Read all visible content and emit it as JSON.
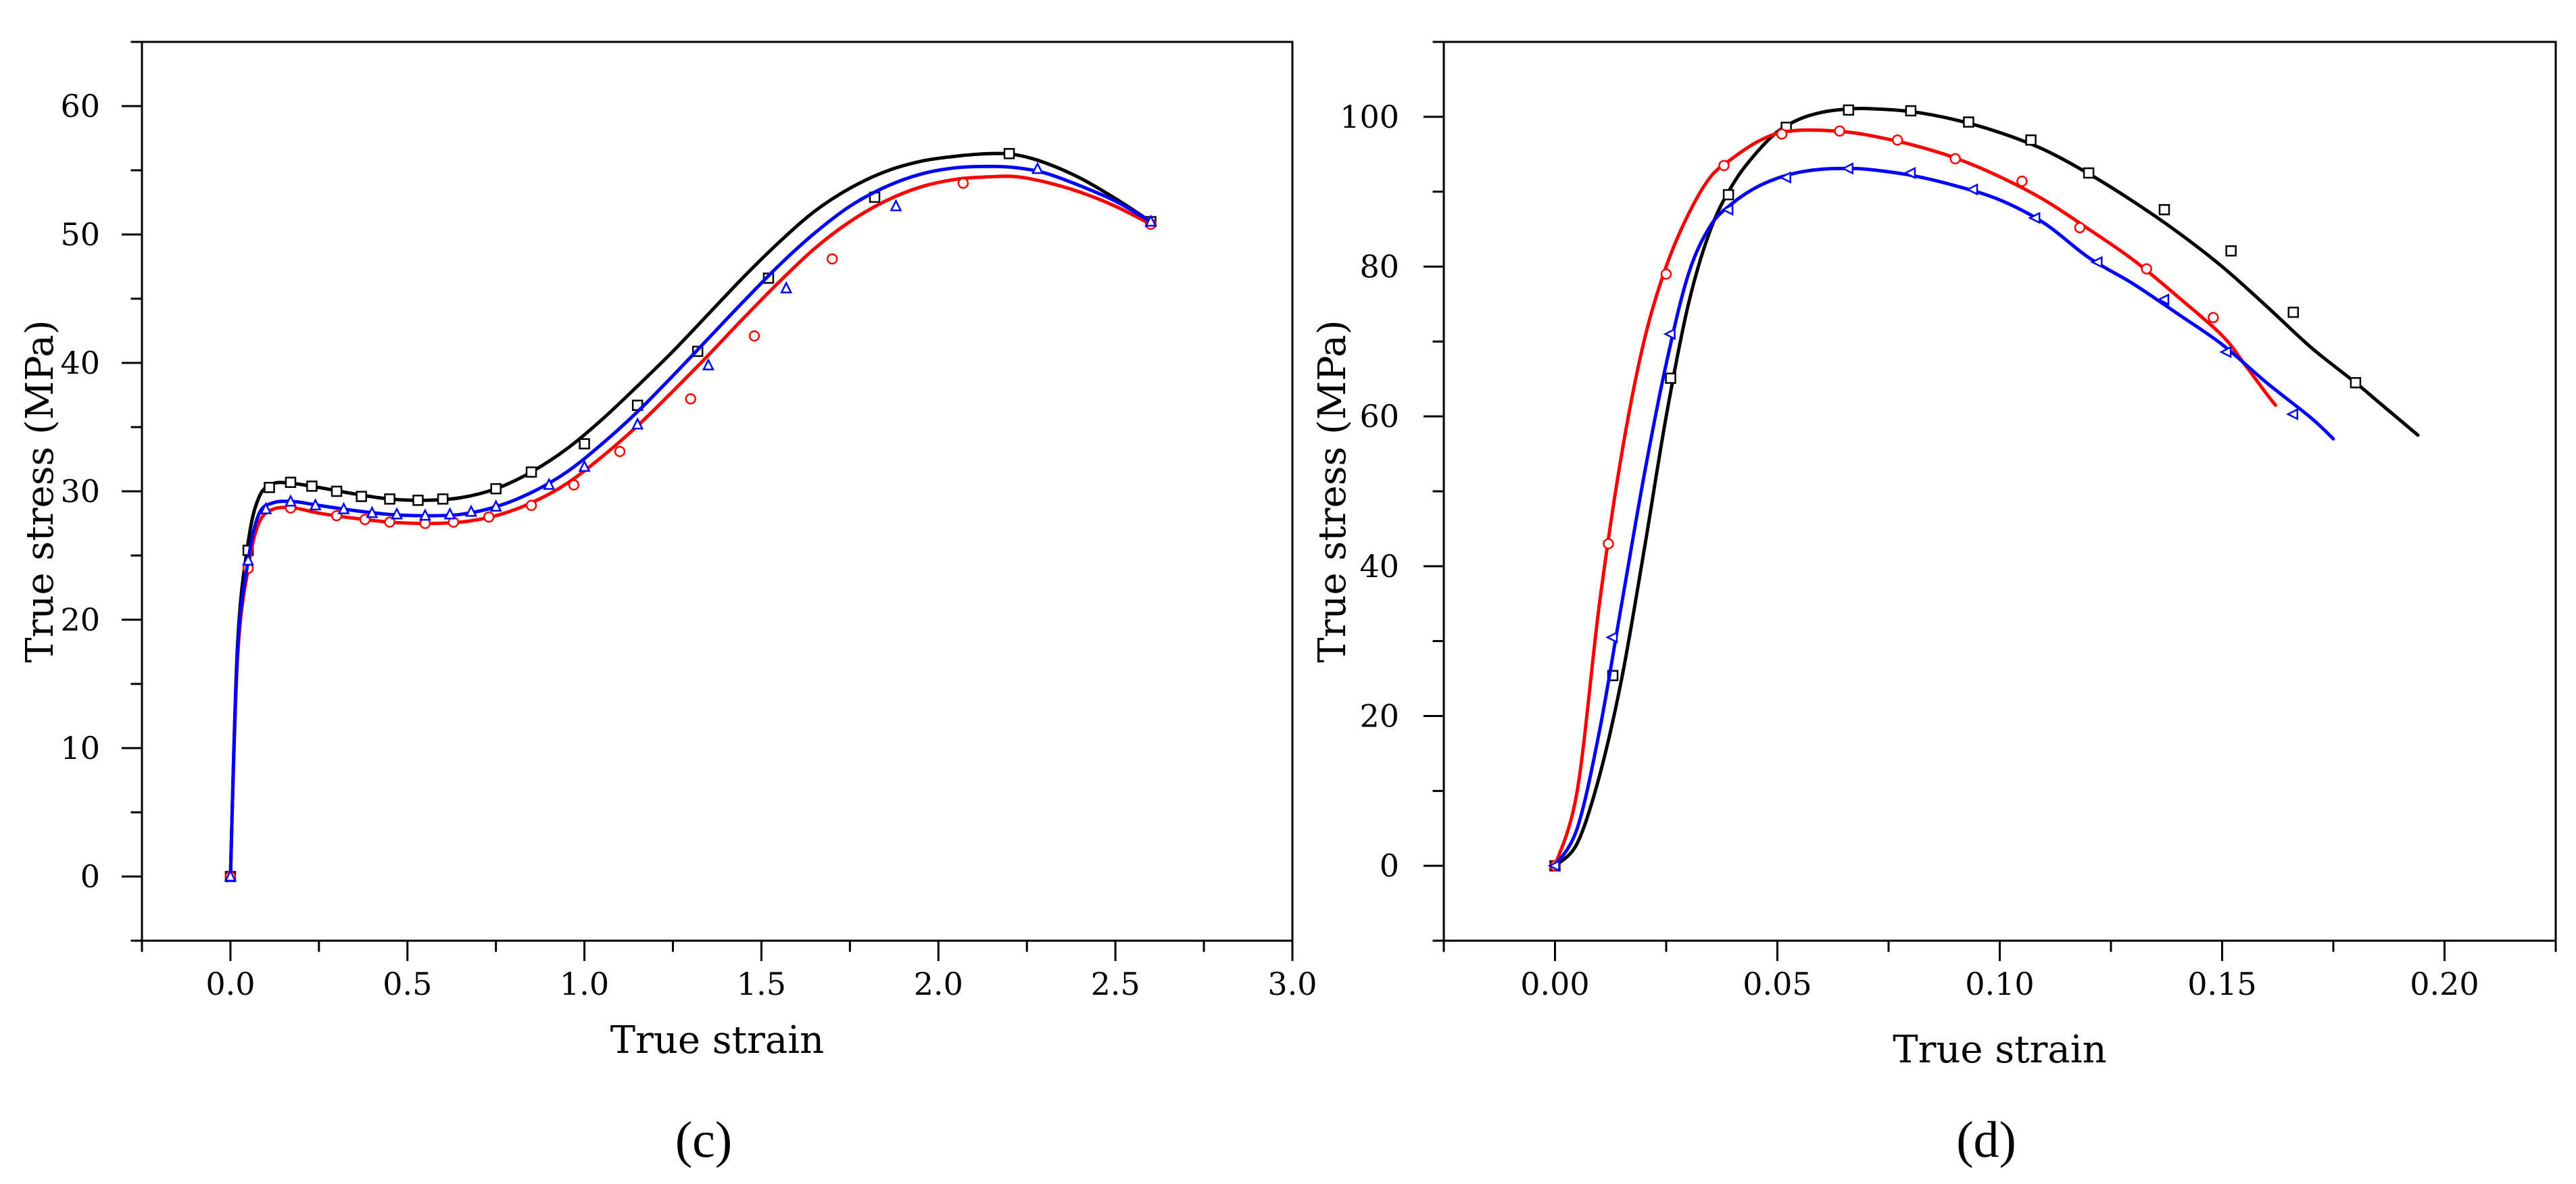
{
  "chart_data": [
    {
      "type": "line",
      "panel_label": "(c)",
      "xlabel": "True strain",
      "ylabel": "True stress (MPa)",
      "xlim": [
        -0.25,
        3.0
      ],
      "ylim": [
        -5,
        65
      ],
      "xticks": [
        0.0,
        0.5,
        1.0,
        1.5,
        2.0,
        2.5,
        3.0
      ],
      "xtick_labels": [
        "0.0",
        "0.5",
        "1.0",
        "1.5",
        "2.0",
        "2.5",
        "3.0"
      ],
      "yticks": [
        0,
        10,
        20,
        30,
        40,
        50,
        60
      ],
      "ytick_labels": [
        "0",
        "10",
        "20",
        "30",
        "40",
        "50",
        "60"
      ],
      "series": [
        {
          "name": "black-square",
          "color": "#000000",
          "marker": "square",
          "x": [
            0,
            0.02,
            0.05,
            0.08,
            0.12,
            0.18,
            0.25,
            0.35,
            0.45,
            0.55,
            0.65,
            0.75,
            0.85,
            0.95,
            1.05,
            1.15,
            1.25,
            1.35,
            1.45,
            1.55,
            1.65,
            1.75,
            1.85,
            1.95,
            2.05,
            2.15,
            2.22,
            2.3,
            2.4,
            2.5,
            2.6
          ],
          "y": [
            0,
            18,
            26,
            29.5,
            30.6,
            30.6,
            30.3,
            29.8,
            29.4,
            29.3,
            29.5,
            30.2,
            31.5,
            33.3,
            35.6,
            38.2,
            40.9,
            43.8,
            46.7,
            49.4,
            51.8,
            53.6,
            54.9,
            55.7,
            56.1,
            56.3,
            56.2,
            55.6,
            54.4,
            52.8,
            51.0
          ],
          "marker_x": [
            0,
            0.05,
            0.11,
            0.17,
            0.23,
            0.3,
            0.37,
            0.45,
            0.53,
            0.6,
            0.75,
            0.85,
            1.0,
            1.15,
            1.32,
            1.52,
            1.82,
            2.2,
            2.6
          ],
          "marker_y": [
            0,
            25.4,
            30.3,
            30.7,
            30.4,
            30.0,
            29.6,
            29.4,
            29.3,
            29.4,
            30.2,
            31.5,
            33.7,
            36.7,
            40.9,
            46.6,
            52.9,
            56.3,
            51.0
          ]
        },
        {
          "name": "red-circle",
          "color": "#ff0000",
          "marker": "circle",
          "x": [
            0,
            0.02,
            0.05,
            0.08,
            0.12,
            0.18,
            0.25,
            0.35,
            0.45,
            0.55,
            0.65,
            0.75,
            0.85,
            0.95,
            1.05,
            1.15,
            1.25,
            1.35,
            1.45,
            1.55,
            1.65,
            1.75,
            1.85,
            1.95,
            2.05,
            2.15,
            2.22,
            2.3,
            2.4,
            2.5,
            2.6
          ],
          "y": [
            0,
            17,
            24,
            27.5,
            28.6,
            28.7,
            28.3,
            27.9,
            27.6,
            27.5,
            27.6,
            28.1,
            29.1,
            30.6,
            32.7,
            35.1,
            37.8,
            40.6,
            43.5,
            46.3,
            48.9,
            51.0,
            52.6,
            53.7,
            54.3,
            54.5,
            54.5,
            54.1,
            53.3,
            52.2,
            50.8
          ],
          "marker_x": [
            0,
            0.05,
            0.17,
            0.3,
            0.38,
            0.45,
            0.55,
            0.63,
            0.73,
            0.85,
            0.97,
            1.1,
            1.3,
            1.48,
            1.7,
            2.07,
            2.6
          ],
          "marker_y": [
            0,
            24.0,
            28.7,
            28.1,
            27.8,
            27.6,
            27.5,
            27.6,
            28.0,
            28.9,
            30.5,
            33.1,
            37.2,
            42.1,
            48.1,
            54.0,
            50.8
          ]
        },
        {
          "name": "blue-triangle",
          "color": "#0000ff",
          "marker": "triangle",
          "x": [
            0,
            0.02,
            0.05,
            0.08,
            0.12,
            0.18,
            0.25,
            0.35,
            0.45,
            0.55,
            0.65,
            0.75,
            0.85,
            0.95,
            1.05,
            1.15,
            1.25,
            1.35,
            1.45,
            1.55,
            1.65,
            1.75,
            1.85,
            1.95,
            2.05,
            2.15,
            2.22,
            2.3,
            2.4,
            2.5,
            2.6
          ],
          "y": [
            0,
            17.5,
            24.6,
            28.2,
            29.1,
            29.2,
            28.9,
            28.5,
            28.2,
            28.1,
            28.2,
            28.8,
            29.9,
            31.5,
            33.7,
            36.2,
            39.0,
            41.9,
            44.8,
            47.6,
            50.1,
            52.2,
            53.7,
            54.7,
            55.2,
            55.3,
            55.2,
            54.8,
            53.8,
            52.6,
            51.0
          ],
          "marker_x": [
            0,
            0.05,
            0.1,
            0.17,
            0.24,
            0.32,
            0.4,
            0.47,
            0.55,
            0.62,
            0.68,
            0.75,
            0.9,
            1.0,
            1.15,
            1.35,
            1.57,
            1.88,
            2.28,
            2.6
          ],
          "marker_y": [
            0,
            24.6,
            28.6,
            29.2,
            28.9,
            28.6,
            28.3,
            28.2,
            28.1,
            28.2,
            28.4,
            28.8,
            30.5,
            31.9,
            35.2,
            39.8,
            45.8,
            52.2,
            55.1,
            51.0
          ]
        }
      ]
    },
    {
      "type": "line",
      "panel_label": "(d)",
      "xlabel": "True strain",
      "ylabel": "True stress (MPa)",
      "xlim": [
        -0.025,
        0.225
      ],
      "ylim": [
        -10,
        110
      ],
      "xticks": [
        0.0,
        0.05,
        0.1,
        0.15,
        0.2
      ],
      "xtick_labels": [
        "0.00",
        "0.05",
        "0.10",
        "0.15",
        "0.20"
      ],
      "yticks": [
        0,
        20,
        40,
        60,
        80,
        100
      ],
      "ytick_labels": [
        "0",
        "20",
        "40",
        "60",
        "80",
        "100"
      ],
      "series": [
        {
          "name": "black-square",
          "color": "#000000",
          "marker": "square",
          "x": [
            0,
            0.005,
            0.01,
            0.015,
            0.02,
            0.025,
            0.03,
            0.035,
            0.04,
            0.045,
            0.05,
            0.055,
            0.06,
            0.065,
            0.07,
            0.08,
            0.09,
            0.1,
            0.11,
            0.12,
            0.13,
            0.14,
            0.15,
            0.16,
            0.17,
            0.18,
            0.185,
            0.19,
            0.194
          ],
          "y": [
            0,
            3,
            12,
            25,
            42,
            60,
            75,
            85,
            91,
            95,
            98,
            99.7,
            100.6,
            101,
            101.1,
            100.7,
            99.6,
            97.9,
            95.6,
            92.4,
            88.7,
            84.6,
            80.0,
            74.7,
            69.2,
            64.5,
            62.0,
            59.5,
            57.5
          ],
          "marker_x": [
            0,
            0.013,
            0.026,
            0.039,
            0.052,
            0.066,
            0.08,
            0.093,
            0.107,
            0.12,
            0.137,
            0.152,
            0.166,
            0.18
          ],
          "marker_y": [
            0,
            25.4,
            65.1,
            89.6,
            98.6,
            100.9,
            100.8,
            99.3,
            96.9,
            92.5,
            87.6,
            82.1,
            73.9,
            64.5
          ]
        },
        {
          "name": "red-circle",
          "color": "#ff0000",
          "marker": "circle",
          "x": [
            0,
            0.005,
            0.01,
            0.015,
            0.02,
            0.025,
            0.03,
            0.035,
            0.04,
            0.045,
            0.05,
            0.055,
            0.06,
            0.065,
            0.07,
            0.08,
            0.09,
            0.1,
            0.11,
            0.12,
            0.13,
            0.14,
            0.15,
            0.155,
            0.16,
            0.162
          ],
          "y": [
            0,
            10,
            35,
            55,
            70,
            80,
            87,
            92,
            94.5,
            96.5,
            97.8,
            98.2,
            98.2,
            98.0,
            97.6,
            96.3,
            94.5,
            92.0,
            88.9,
            85.0,
            80.9,
            76.0,
            70.8,
            67.0,
            63.0,
            61.5
          ],
          "marker_x": [
            0,
            0.012,
            0.025,
            0.038,
            0.051,
            0.064,
            0.077,
            0.09,
            0.105,
            0.118,
            0.133,
            0.148
          ],
          "marker_y": [
            0,
            43,
            79,
            93.5,
            97.7,
            98.1,
            96.9,
            94.4,
            91.4,
            85.2,
            79.7,
            73.2
          ]
        },
        {
          "name": "blue-triangle",
          "color": "#0000ff",
          "marker": "triangle-left",
          "x": [
            0,
            0.005,
            0.01,
            0.015,
            0.02,
            0.025,
            0.03,
            0.035,
            0.04,
            0.045,
            0.05,
            0.055,
            0.06,
            0.065,
            0.07,
            0.08,
            0.09,
            0.1,
            0.11,
            0.12,
            0.13,
            0.14,
            0.15,
            0.16,
            0.17,
            0.175
          ],
          "y": [
            0,
            5,
            18,
            35,
            52,
            67,
            79,
            85.5,
            88.5,
            90.5,
            91.8,
            92.6,
            93.0,
            93.1,
            93.0,
            92.2,
            90.8,
            88.9,
            85.8,
            81.2,
            77.7,
            73.7,
            69.6,
            64.5,
            59.8,
            57.0
          ],
          "marker_x": [
            0,
            0.013,
            0.026,
            0.039,
            0.052,
            0.066,
            0.08,
            0.094,
            0.108,
            0.122,
            0.137,
            0.151,
            0.166
          ],
          "marker_y": [
            0,
            30.5,
            71,
            87.6,
            91.9,
            93.1,
            92.5,
            90.3,
            86.5,
            80.6,
            75.6,
            68.6,
            60.3
          ]
        }
      ]
    }
  ]
}
